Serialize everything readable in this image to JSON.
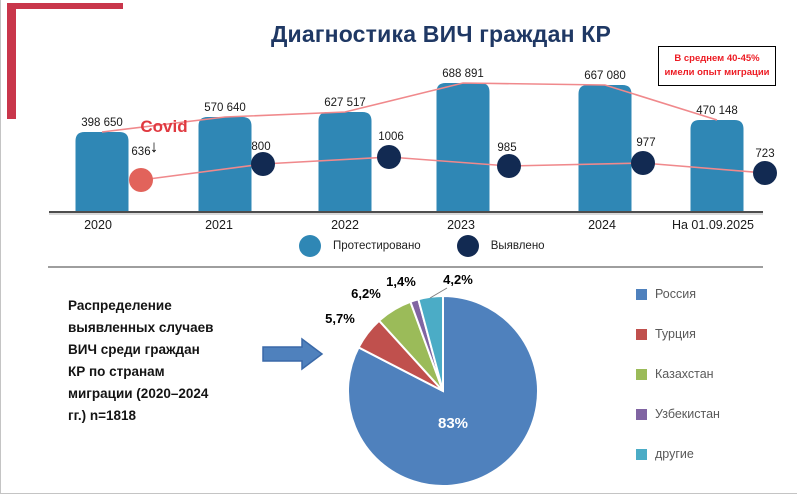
{
  "slide": {
    "title": "Диагностика ВИЧ граждан КР",
    "note_box": "В среднем 40-45%\nимели опыт миграции",
    "pie_description": "Распределение\nвыявленных случаев\nВИЧ среди граждан\nКР по странам\nмиграции (2020–2024\nгг.) n=1818"
  },
  "colors": {
    "title": "#1F3864",
    "accent_red": "#C9364B",
    "note_red": "#ED1C24",
    "bar": "#2F87B5",
    "detected": "#122A52",
    "covid_dot": "#E2635B",
    "trend": "#F0898C",
    "covid_text": "#E03940",
    "axis": "#4D4D4D",
    "divider": "#9E9E9E",
    "legend_text": "#595959",
    "label_text": "#1A1A1A",
    "arrow_fill": "#4F81BD",
    "arrow_stroke": "#3A69A8"
  },
  "chart_data": [
    {
      "type": "bar",
      "subtype": "bar with scatter overlay and trend lines",
      "title": "Диагностика ВИЧ граждан КР",
      "categories": [
        "2020",
        "2021",
        "2022",
        "2023",
        "2024",
        "На 01.09.2025"
      ],
      "series": [
        {
          "name": "Протестировано",
          "chart": "bar",
          "values": [
            398650,
            570640,
            627517,
            688891,
            667080,
            470148
          ],
          "labels": [
            "398 650",
            "570 640",
            "627 517",
            "688 891",
            "667 080",
            "470 148"
          ],
          "color": "#2F87B5"
        },
        {
          "name": "Выявлено",
          "chart": "scatter",
          "values": [
            636,
            800,
            1006,
            985,
            977,
            723
          ],
          "labels": [
            "636",
            "800",
            "1006",
            "985",
            "977",
            "723"
          ],
          "color": "#122A52",
          "first_point_color": "#E2635B"
        }
      ],
      "annotation": {
        "text": "Covid",
        "arrow": "↓"
      },
      "legend_position": "bottom",
      "grid": false
    },
    {
      "type": "pie",
      "title": "Распределение выявленных случаев ВИЧ среди граждан КР по странам миграции (2020–2024 гг.) n=1818",
      "labels": [
        "Россия",
        "Турция",
        "Казахстан",
        "Узбекистан",
        "другие"
      ],
      "values": [
        83,
        5.7,
        6.2,
        1.4,
        4.2
      ],
      "value_labels": [
        "83%",
        "5,7%",
        "6,2%",
        "1,4%",
        "4,2%"
      ],
      "colors": [
        "#4F81BD",
        "#C0504D",
        "#9BBB59",
        "#8064A2",
        "#4BACC6"
      ],
      "legend_position": "right"
    }
  ]
}
